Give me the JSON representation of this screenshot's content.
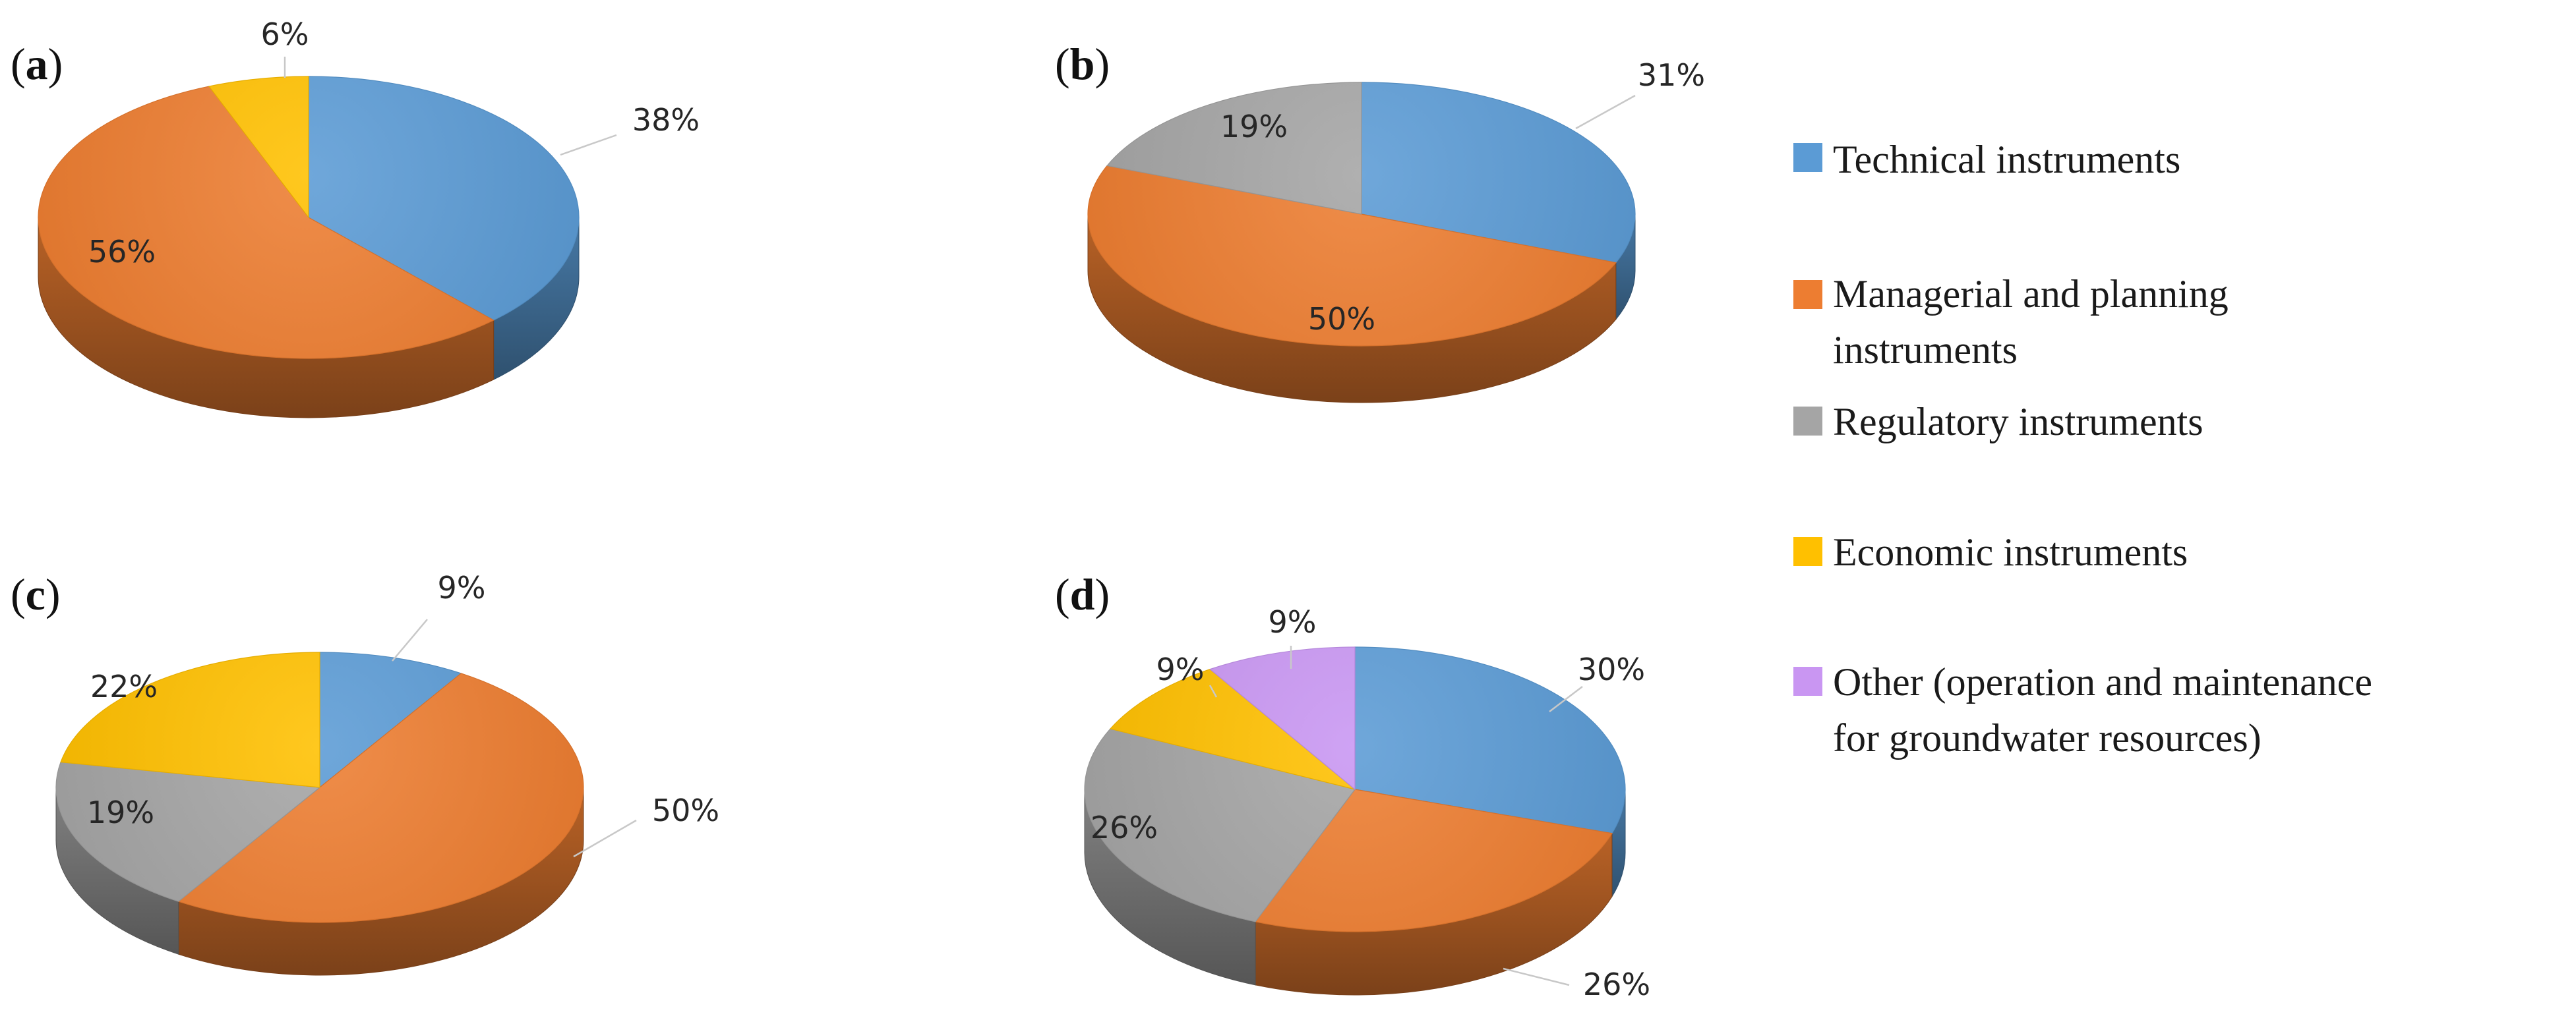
{
  "colors": {
    "technical": "#5b9bd5",
    "managerial": "#ed7d31",
    "regulatory": "#a5a5a5",
    "economic": "#ffc000",
    "other": "#c996f2"
  },
  "legend": [
    {
      "key": "technical",
      "lines": [
        "Technical instruments"
      ]
    },
    {
      "key": "managerial",
      "lines": [
        "Managerial and planning",
        "instruments"
      ]
    },
    {
      "key": "regulatory",
      "lines": [
        "Regulatory instruments"
      ]
    },
    {
      "key": "economic",
      "lines": [
        "Economic instruments"
      ]
    },
    {
      "key": "other",
      "lines": [
        "Other (operation and maintenance",
        "for groundwater resources)"
      ]
    }
  ],
  "chart_data": [
    {
      "type": "pie",
      "panel": "(a)",
      "panel_letter": "a",
      "slices": [
        {
          "category": "technical",
          "value": 38,
          "label": "38%"
        },
        {
          "category": "managerial",
          "value": 56,
          "label": "56%"
        },
        {
          "category": "economic",
          "value": 6,
          "label": "6%"
        }
      ]
    },
    {
      "type": "pie",
      "panel": "(b)",
      "panel_letter": "b",
      "slices": [
        {
          "category": "technical",
          "value": 31,
          "label": "31%"
        },
        {
          "category": "managerial",
          "value": 50,
          "label": "50%"
        },
        {
          "category": "regulatory",
          "value": 19,
          "label": "19%"
        }
      ]
    },
    {
      "type": "pie",
      "panel": "(c)",
      "panel_letter": "c",
      "slices": [
        {
          "category": "technical",
          "value": 9,
          "label": "9%"
        },
        {
          "category": "managerial",
          "value": 50,
          "label": "50%"
        },
        {
          "category": "regulatory",
          "value": 19,
          "label": "19%"
        },
        {
          "category": "economic",
          "value": 22,
          "label": "22%"
        }
      ]
    },
    {
      "type": "pie",
      "panel": "(d)",
      "panel_letter": "d",
      "slices": [
        {
          "category": "technical",
          "value": 30,
          "label": "30%"
        },
        {
          "category": "managerial",
          "value": 26,
          "label": "26%"
        },
        {
          "category": "regulatory",
          "value": 26,
          "label": "26%"
        },
        {
          "category": "economic",
          "value": 9,
          "label": "9%"
        },
        {
          "category": "other",
          "value": 9,
          "label": "9%"
        }
      ]
    }
  ]
}
